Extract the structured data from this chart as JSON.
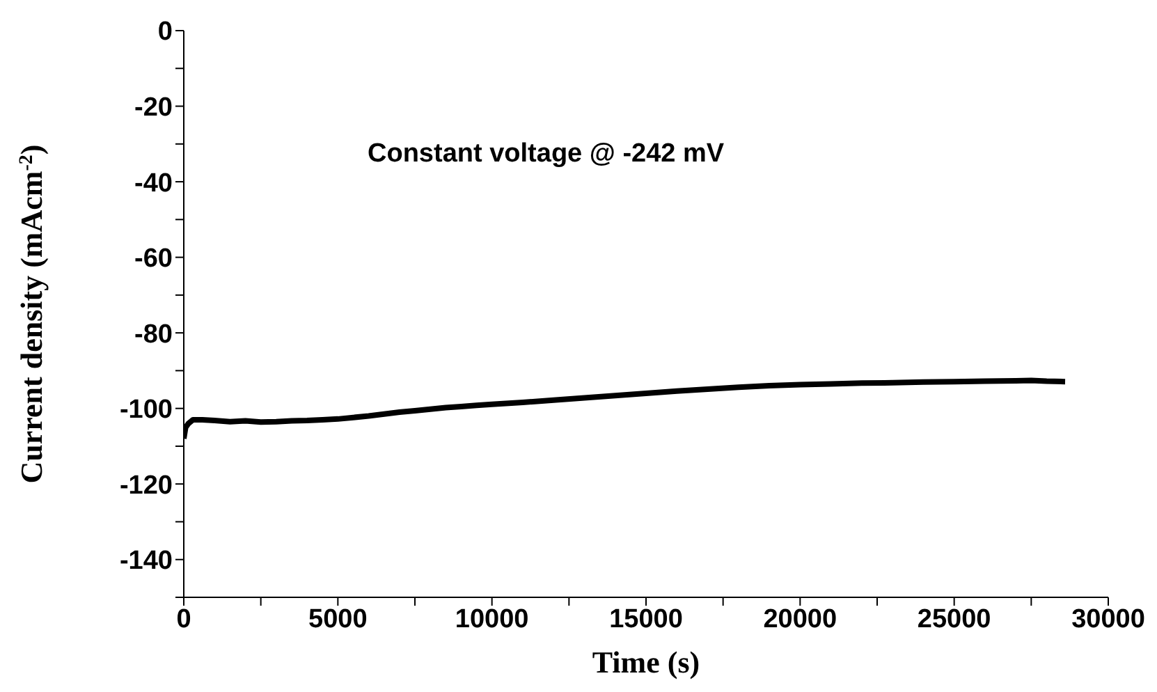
{
  "chart_data": {
    "type": "line",
    "xlabel": "Time (s)",
    "ylabel": "Current density (mAcm$^{-2}$)",
    "annotations": [
      "Constant voltage @ -242 mV"
    ],
    "xlim": [
      0,
      30000
    ],
    "ylim": [
      -150,
      0
    ],
    "xticks": [
      0,
      {
        "value": 2500,
        "label": null
      },
      5000,
      {
        "value": 7500,
        "label": null
      },
      10000,
      {
        "value": 12500,
        "label": null
      },
      15000,
      {
        "value": 17500,
        "label": null
      },
      20000,
      {
        "value": 22500,
        "label": null
      },
      25000,
      {
        "value": 27500,
        "label": null
      },
      30000
    ],
    "yticks": [
      {
        "value": -150,
        "label": null
      },
      -140,
      {
        "value": -130,
        "label": null
      },
      -120,
      {
        "value": -110,
        "label": null
      },
      -100,
      {
        "value": -90,
        "label": null
      },
      -80,
      {
        "value": -70,
        "label": null
      },
      -60,
      {
        "value": -50,
        "label": null
      },
      -40,
      {
        "value": -30,
        "label": null
      },
      -20,
      {
        "value": -10,
        "label": null
      },
      0
    ],
    "grid": false,
    "marker": "none",
    "line_style": "solid",
    "series": [
      {
        "color": "#000000",
        "x": [
          0,
          60,
          150,
          300,
          600,
          1000,
          1500,
          2000,
          2500,
          3000,
          3500,
          4000,
          4500,
          5000,
          5500,
          6000,
          6500,
          7000,
          7500,
          8000,
          8500,
          9000,
          9500,
          10000,
          11000,
          12000,
          13000,
          14000,
          15000,
          16000,
          17000,
          18000,
          19000,
          20000,
          21000,
          22000,
          23000,
          24000,
          25000,
          26000,
          27000,
          27500,
          28000,
          28600
        ],
        "values": [
          -108,
          -105,
          -104,
          -103,
          -103,
          -103.2,
          -103.5,
          -103.3,
          -103.6,
          -103.5,
          -103.3,
          -103.2,
          -103,
          -102.8,
          -102.4,
          -102,
          -101.5,
          -101,
          -100.6,
          -100.2,
          -99.8,
          -99.5,
          -99.2,
          -98.9,
          -98.4,
          -97.8,
          -97.2,
          -96.6,
          -96,
          -95.4,
          -94.9,
          -94.4,
          -94,
          -93.7,
          -93.5,
          -93.3,
          -93.2,
          -93,
          -92.9,
          -92.8,
          -92.7,
          -92.6,
          -92.8,
          -92.9
        ]
      }
    ]
  }
}
